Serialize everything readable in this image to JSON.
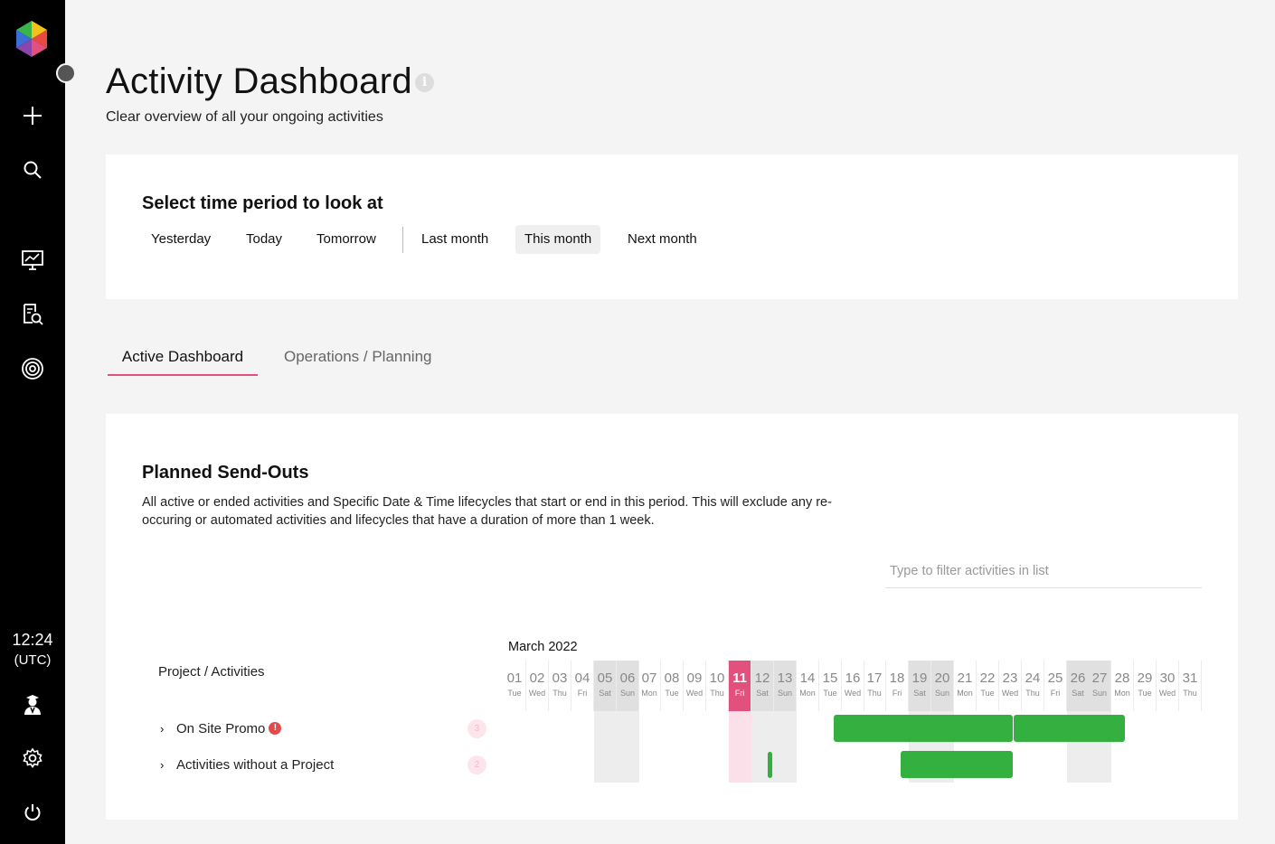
{
  "sidebar": {
    "clock_time": "12:24",
    "clock_zone": "(UTC)"
  },
  "header": {
    "title": "Activity Dashboard",
    "info_glyph": "i",
    "subtitle": "Clear overview of all your ongoing activities"
  },
  "period": {
    "title": "Select time period to look at",
    "buttons": [
      "Yesterday",
      "Today",
      "Tomorrow",
      "Last month",
      "This month",
      "Next month"
    ],
    "selected": "This month"
  },
  "tabs": {
    "active": "Active Dashboard",
    "other": "Operations / Planning"
  },
  "sendouts": {
    "title": "Planned Send-Outs",
    "description": "All active or ended activities and Specific Date & Time lifecycles that start or end in this period. This will exclude any re-occuring or automated activities and lifecycles that have a duration of more than 1 week.",
    "filter_placeholder": "Type to filter activities in list",
    "month": "March 2022",
    "column_header": "Project / Activities",
    "today_day": 11,
    "days": [
      [
        "01",
        "Tue"
      ],
      [
        "02",
        "Wed"
      ],
      [
        "03",
        "Thu"
      ],
      [
        "04",
        "Fri"
      ],
      [
        "05",
        "Sat"
      ],
      [
        "06",
        "Sun"
      ],
      [
        "07",
        "Mon"
      ],
      [
        "08",
        "Tue"
      ],
      [
        "09",
        "Wed"
      ],
      [
        "10",
        "Thu"
      ],
      [
        "11",
        "Fri"
      ],
      [
        "12",
        "Sat"
      ],
      [
        "13",
        "Sun"
      ],
      [
        "14",
        "Mon"
      ],
      [
        "15",
        "Tue"
      ],
      [
        "16",
        "Wed"
      ],
      [
        "17",
        "Thu"
      ],
      [
        "18",
        "Fri"
      ],
      [
        "19",
        "Sat"
      ],
      [
        "20",
        "Sun"
      ],
      [
        "21",
        "Mon"
      ],
      [
        "22",
        "Tue"
      ],
      [
        "23",
        "Wed"
      ],
      [
        "24",
        "Thu"
      ],
      [
        "25",
        "Fri"
      ],
      [
        "26",
        "Sat"
      ],
      [
        "27",
        "Sun"
      ],
      [
        "28",
        "Mon"
      ],
      [
        "29",
        "Tue"
      ],
      [
        "30",
        "Wed"
      ],
      [
        "31",
        "Thu"
      ]
    ],
    "rows": [
      {
        "label": "On Site Promo",
        "alert": true,
        "alert_glyph": "!",
        "count": "3",
        "chevron": "›"
      },
      {
        "label": "Activities without a Project",
        "alert": false,
        "count": "2",
        "chevron": "›"
      }
    ]
  },
  "colors": {
    "accent": "#e2507e",
    "bar": "#34b040",
    "sidebar": "#000000"
  }
}
